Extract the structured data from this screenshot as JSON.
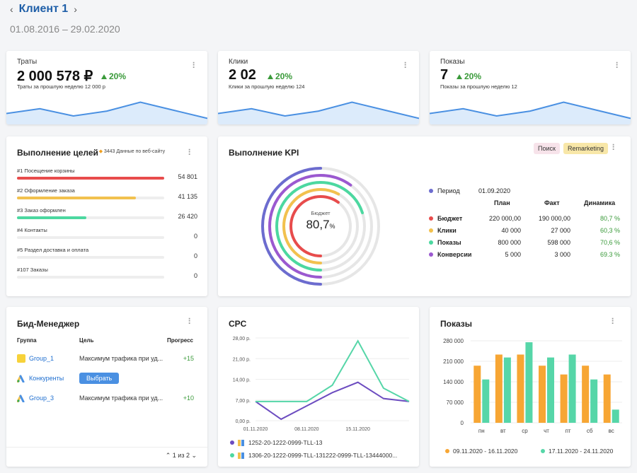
{
  "header": {
    "client": "Клиент 1",
    "prev": "‹",
    "next": "›",
    "period": "01.08.2016 – 29.02.2020"
  },
  "colors": {
    "accent": "#1f5fa8",
    "blue": "#4a90e2",
    "green": "#3a9a3a",
    "red": "#e84c4c",
    "yellow": "#f2c14e",
    "teal": "#4cd8a0",
    "purple": "#9b59d0",
    "navy": "#6c6ccf",
    "orange": "#f7a634",
    "mint": "#56d6a8"
  },
  "kpis": [
    {
      "label": "Траты",
      "value": "2 000 578 ₽",
      "delta": "20%",
      "prev": "Траты за прошлую неделю 12 000 р",
      "spark": [
        5,
        8,
        3.5,
        6.5,
        12,
        7,
        2
      ]
    },
    {
      "label": "Клики",
      "value": "2 02",
      "delta": "20%",
      "prev": "Клики за прошлую неделю 124",
      "spark": [
        5,
        8,
        3.5,
        6.5,
        12,
        7,
        2
      ]
    },
    {
      "label": "Показы",
      "value": "7",
      "delta": "20%",
      "prev": "Показы за прошлую неделю 12",
      "spark": [
        5,
        8,
        3.5,
        6.5,
        12,
        7,
        2
      ]
    }
  ],
  "goals": {
    "title": "Выполнение целей",
    "badge_count": "3443",
    "badge_text": "Данные по веб-сайту",
    "items": [
      {
        "label": "#1 Посещение корзины",
        "value": "54 801",
        "fill": 1.0,
        "color": "#e84c4c"
      },
      {
        "label": "#2 Оформление заказа",
        "value": "41 135",
        "fill": 0.81,
        "color": "#f2c14e"
      },
      {
        "label": "#3 Заказ оформлен",
        "value": "26 420",
        "fill": 0.47,
        "color": "#4cd8a0"
      },
      {
        "label": "#4 Контакты",
        "value": "0",
        "fill": 0,
        "color": "#eee"
      },
      {
        "label": "#5 Раздел доставка и оплата",
        "value": "0",
        "fill": 0,
        "color": "#eee"
      },
      {
        "label": "#107 Заказы",
        "value": "0",
        "fill": 0,
        "color": "#eee"
      }
    ]
  },
  "kpi_block": {
    "title": "Выполнение KPI",
    "pills": [
      "Поиск",
      "Remarketing"
    ],
    "center_label": "Бюджет",
    "center_value": "80,7",
    "center_unit": "%",
    "period_label": "Период",
    "period_value": "01.09.2020",
    "cols": [
      "План",
      "Факт",
      "Динамика"
    ],
    "rows": [
      {
        "name": "Бюджет",
        "plan": "220 000,00",
        "fact": "190 000,00",
        "dyn": "80,7 %",
        "color": "#e84c4c"
      },
      {
        "name": "Клики",
        "plan": "40 000",
        "fact": "27 000",
        "dyn": "60,3 %",
        "color": "#f2c14e"
      },
      {
        "name": "Показы",
        "plan": "800 000",
        "fact": "598 000",
        "dyn": "70,6 %",
        "color": "#4cd8a0"
      },
      {
        "name": "Конверсии",
        "plan": "5 000",
        "fact": "3 000",
        "dyn": "69.3 %",
        "color": "#9b59d0"
      }
    ],
    "rings": [
      {
        "value": 0.5,
        "color": "#6c6ccf"
      },
      {
        "value": 0.6,
        "color": "#9b59d0"
      },
      {
        "value": 0.7,
        "color": "#4cd8a0"
      },
      {
        "value": 0.58,
        "color": "#f2c14e"
      },
      {
        "value": 0.6,
        "color": "#e84c4c"
      }
    ]
  },
  "bid": {
    "title": "Бид-Менеджер",
    "cols": [
      "Группа",
      "Цель",
      "Прогресс"
    ],
    "rows": [
      {
        "name": "Group_1",
        "goal": "Максимум трафика при уд...",
        "progress": "+15",
        "icon": "yandex"
      },
      {
        "name": "Конкуренты",
        "goal": "",
        "progress": "",
        "icon": "google",
        "button": "Выбрать"
      },
      {
        "name": "Group_3",
        "goal": "Максимум трафика при уд...",
        "progress": "+10",
        "icon": "google"
      }
    ],
    "pager": "1 из 2"
  },
  "cpc": {
    "title": "CPC",
    "legend": [
      "1252-20-1222-0999-TLL-13",
      "1306-20-1222-0999-TLL-131222-0999-TLL-13444000..."
    ]
  },
  "shows": {
    "title": "Показы",
    "legend": [
      "09.11.2020 - 16.11.2020",
      "17.11.2020 - 24.11.2020"
    ]
  },
  "chart_data": [
    {
      "type": "line",
      "title": "CPC",
      "x": [
        "01.11.2020",
        "04.11.2020",
        "08.11.2020",
        "11.11.2020",
        "15.11.2020",
        "18.11.2020",
        "20.11.2020"
      ],
      "x_ticks": [
        "01.11.2020",
        "08.11.2020",
        "15.11.2020"
      ],
      "y_ticks": [
        "28,00 р.",
        "21,00 р.",
        "14,00 р.",
        "7,00 р.",
        "0,00 р."
      ],
      "ylim": [
        0,
        28
      ],
      "series": [
        {
          "name": "1252-20-1222-0999-TLL-13",
          "values": [
            6.5,
            0.5,
            5,
            9.5,
            13,
            7.5,
            6.5
          ]
        },
        {
          "name": "1306-20-1222-0999-TLL-131222-0999-TLL-13444000...",
          "values": [
            6.5,
            6.5,
            6.5,
            12,
            27,
            11,
            6.5
          ]
        }
      ]
    },
    {
      "type": "bar",
      "title": "Показы",
      "categories": [
        "пн",
        "вт",
        "ср",
        "чт",
        "пт",
        "сб",
        "вс"
      ],
      "y_ticks": [
        "280 000",
        "210 000",
        "140 000",
        "70 000",
        "0"
      ],
      "ylim": [
        0,
        280000
      ],
      "series": [
        {
          "name": "09.11.2020 - 16.11.2020",
          "values": [
            195000,
            233000,
            233000,
            195000,
            165000,
            195000,
            165000
          ]
        },
        {
          "name": "17.11.2020 - 24.11.2020",
          "values": [
            148000,
            223000,
            275000,
            223000,
            233000,
            148000,
            45000
          ]
        }
      ]
    }
  ]
}
